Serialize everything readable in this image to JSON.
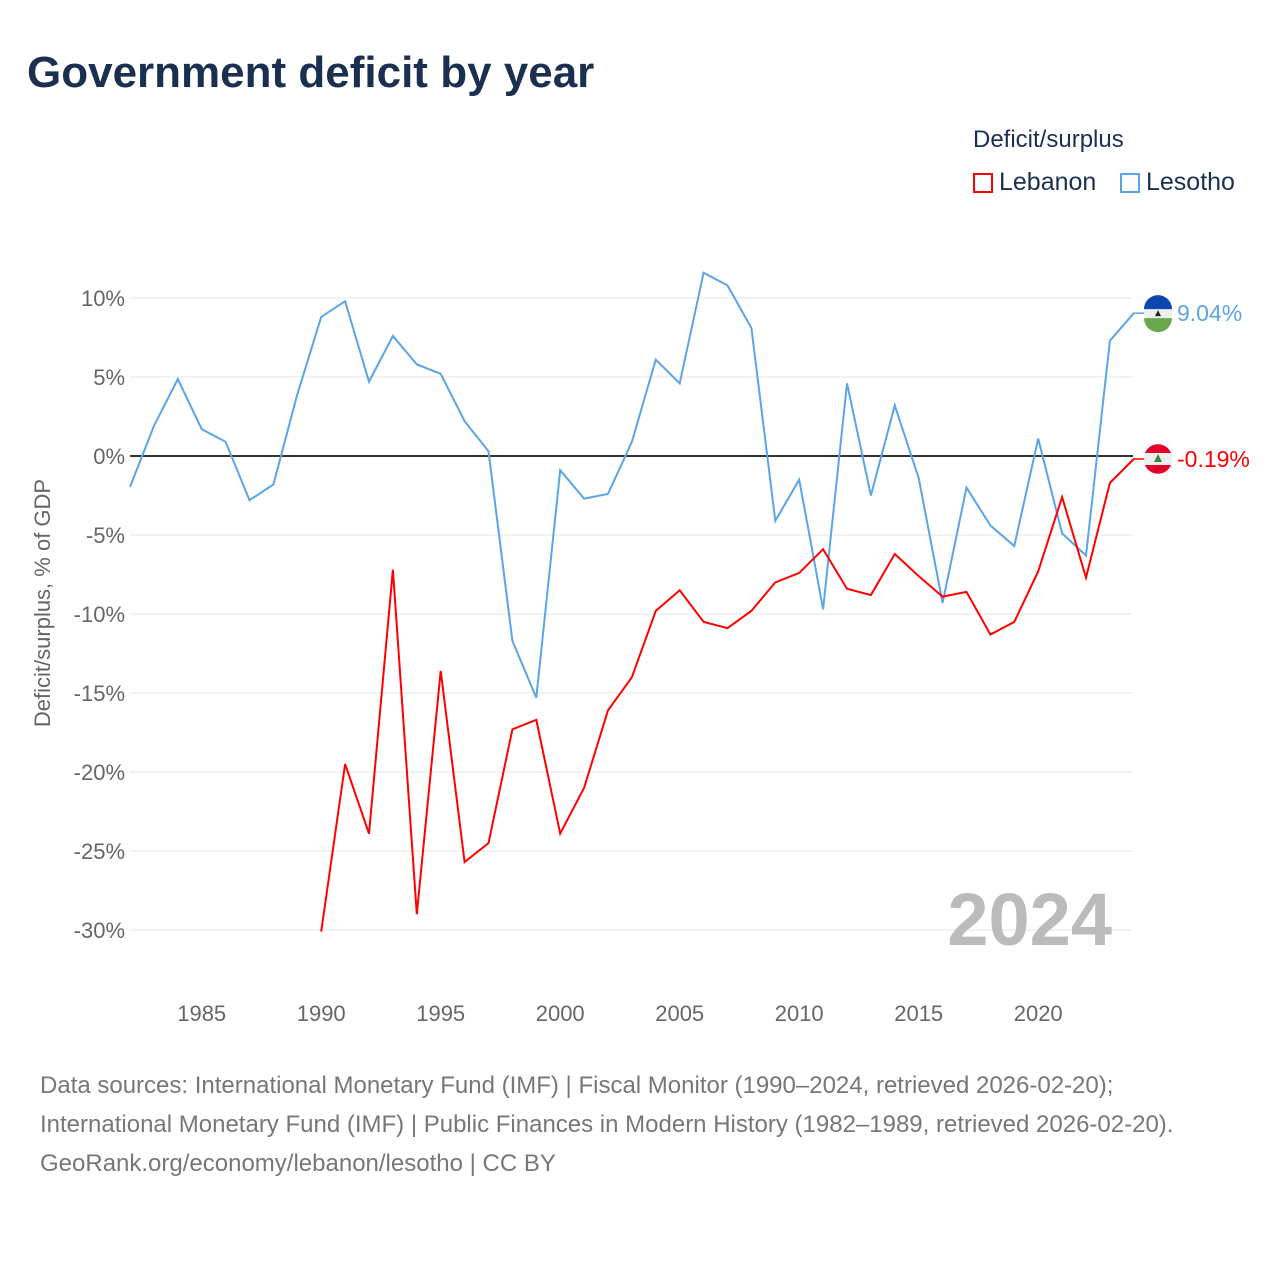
{
  "title": "Government deficit by year",
  "legend": {
    "title": "Deficit/surplus",
    "items": [
      "Lebanon",
      "Lesotho"
    ]
  },
  "colors": {
    "Lebanon": "#ff0000",
    "Lesotho": "#5aa4e8"
  },
  "footer": {
    "sources": "Data sources: International Monetary Fund (IMF) | Fiscal Monitor (1990–2024, retrieved 2026-02-20); International Monetary Fund (IMF) | Public Finances in Modern History (1982–1989, retrieved 2026-02-20).",
    "credit": "GeoRank.org/economy/lebanon/lesotho | CC BY"
  },
  "chart_data": {
    "type": "line",
    "ylabel": "Deficit/surplus, % of GDP",
    "year_watermark": "2024",
    "xlim": [
      1982,
      2024
    ],
    "ylim": [
      -33,
      12
    ],
    "xticks": [
      1985,
      1990,
      1995,
      2000,
      2005,
      2010,
      2015,
      2020
    ],
    "yticks": [
      10,
      5,
      0,
      -5,
      -10,
      -15,
      -20,
      -25,
      -30
    ],
    "end_labels": {
      "Lesotho": "9.04%",
      "Lebanon": "-0.19%"
    },
    "series": [
      {
        "name": "Lesotho",
        "start": 1982,
        "values": [
          -1.96,
          1.9,
          4.87,
          1.7,
          0.9,
          -2.8,
          -1.8,
          3.9,
          8.8,
          9.8,
          4.7,
          7.6,
          5.8,
          5.2,
          2.2,
          0.3,
          -11.7,
          -15.3,
          -0.9,
          -2.7,
          -2.4,
          0.9,
          6.1,
          4.6,
          11.6,
          10.8,
          8.1,
          -4.1,
          -1.5,
          -9.7,
          4.6,
          -2.5,
          3.2,
          -1.4,
          -9.3,
          -2.0,
          -4.4,
          -5.7,
          1.1,
          -4.9,
          -6.3,
          7.3,
          9.04
        ]
      },
      {
        "name": "Lebanon",
        "start": 1990,
        "values": [
          -30.1,
          -19.5,
          -23.9,
          -7.2,
          -29.0,
          -13.6,
          -25.7,
          -24.5,
          -17.3,
          -16.7,
          -23.9,
          -21.0,
          -16.1,
          -14.0,
          -9.8,
          -8.5,
          -10.5,
          -10.9,
          -9.8,
          -8.0,
          -7.4,
          -5.9,
          -8.4,
          -8.8,
          -6.2,
          -7.6,
          -8.9,
          -8.6,
          -11.3,
          -10.5,
          -7.3,
          -2.6,
          -7.7,
          -1.7,
          -0.19
        ]
      }
    ]
  }
}
